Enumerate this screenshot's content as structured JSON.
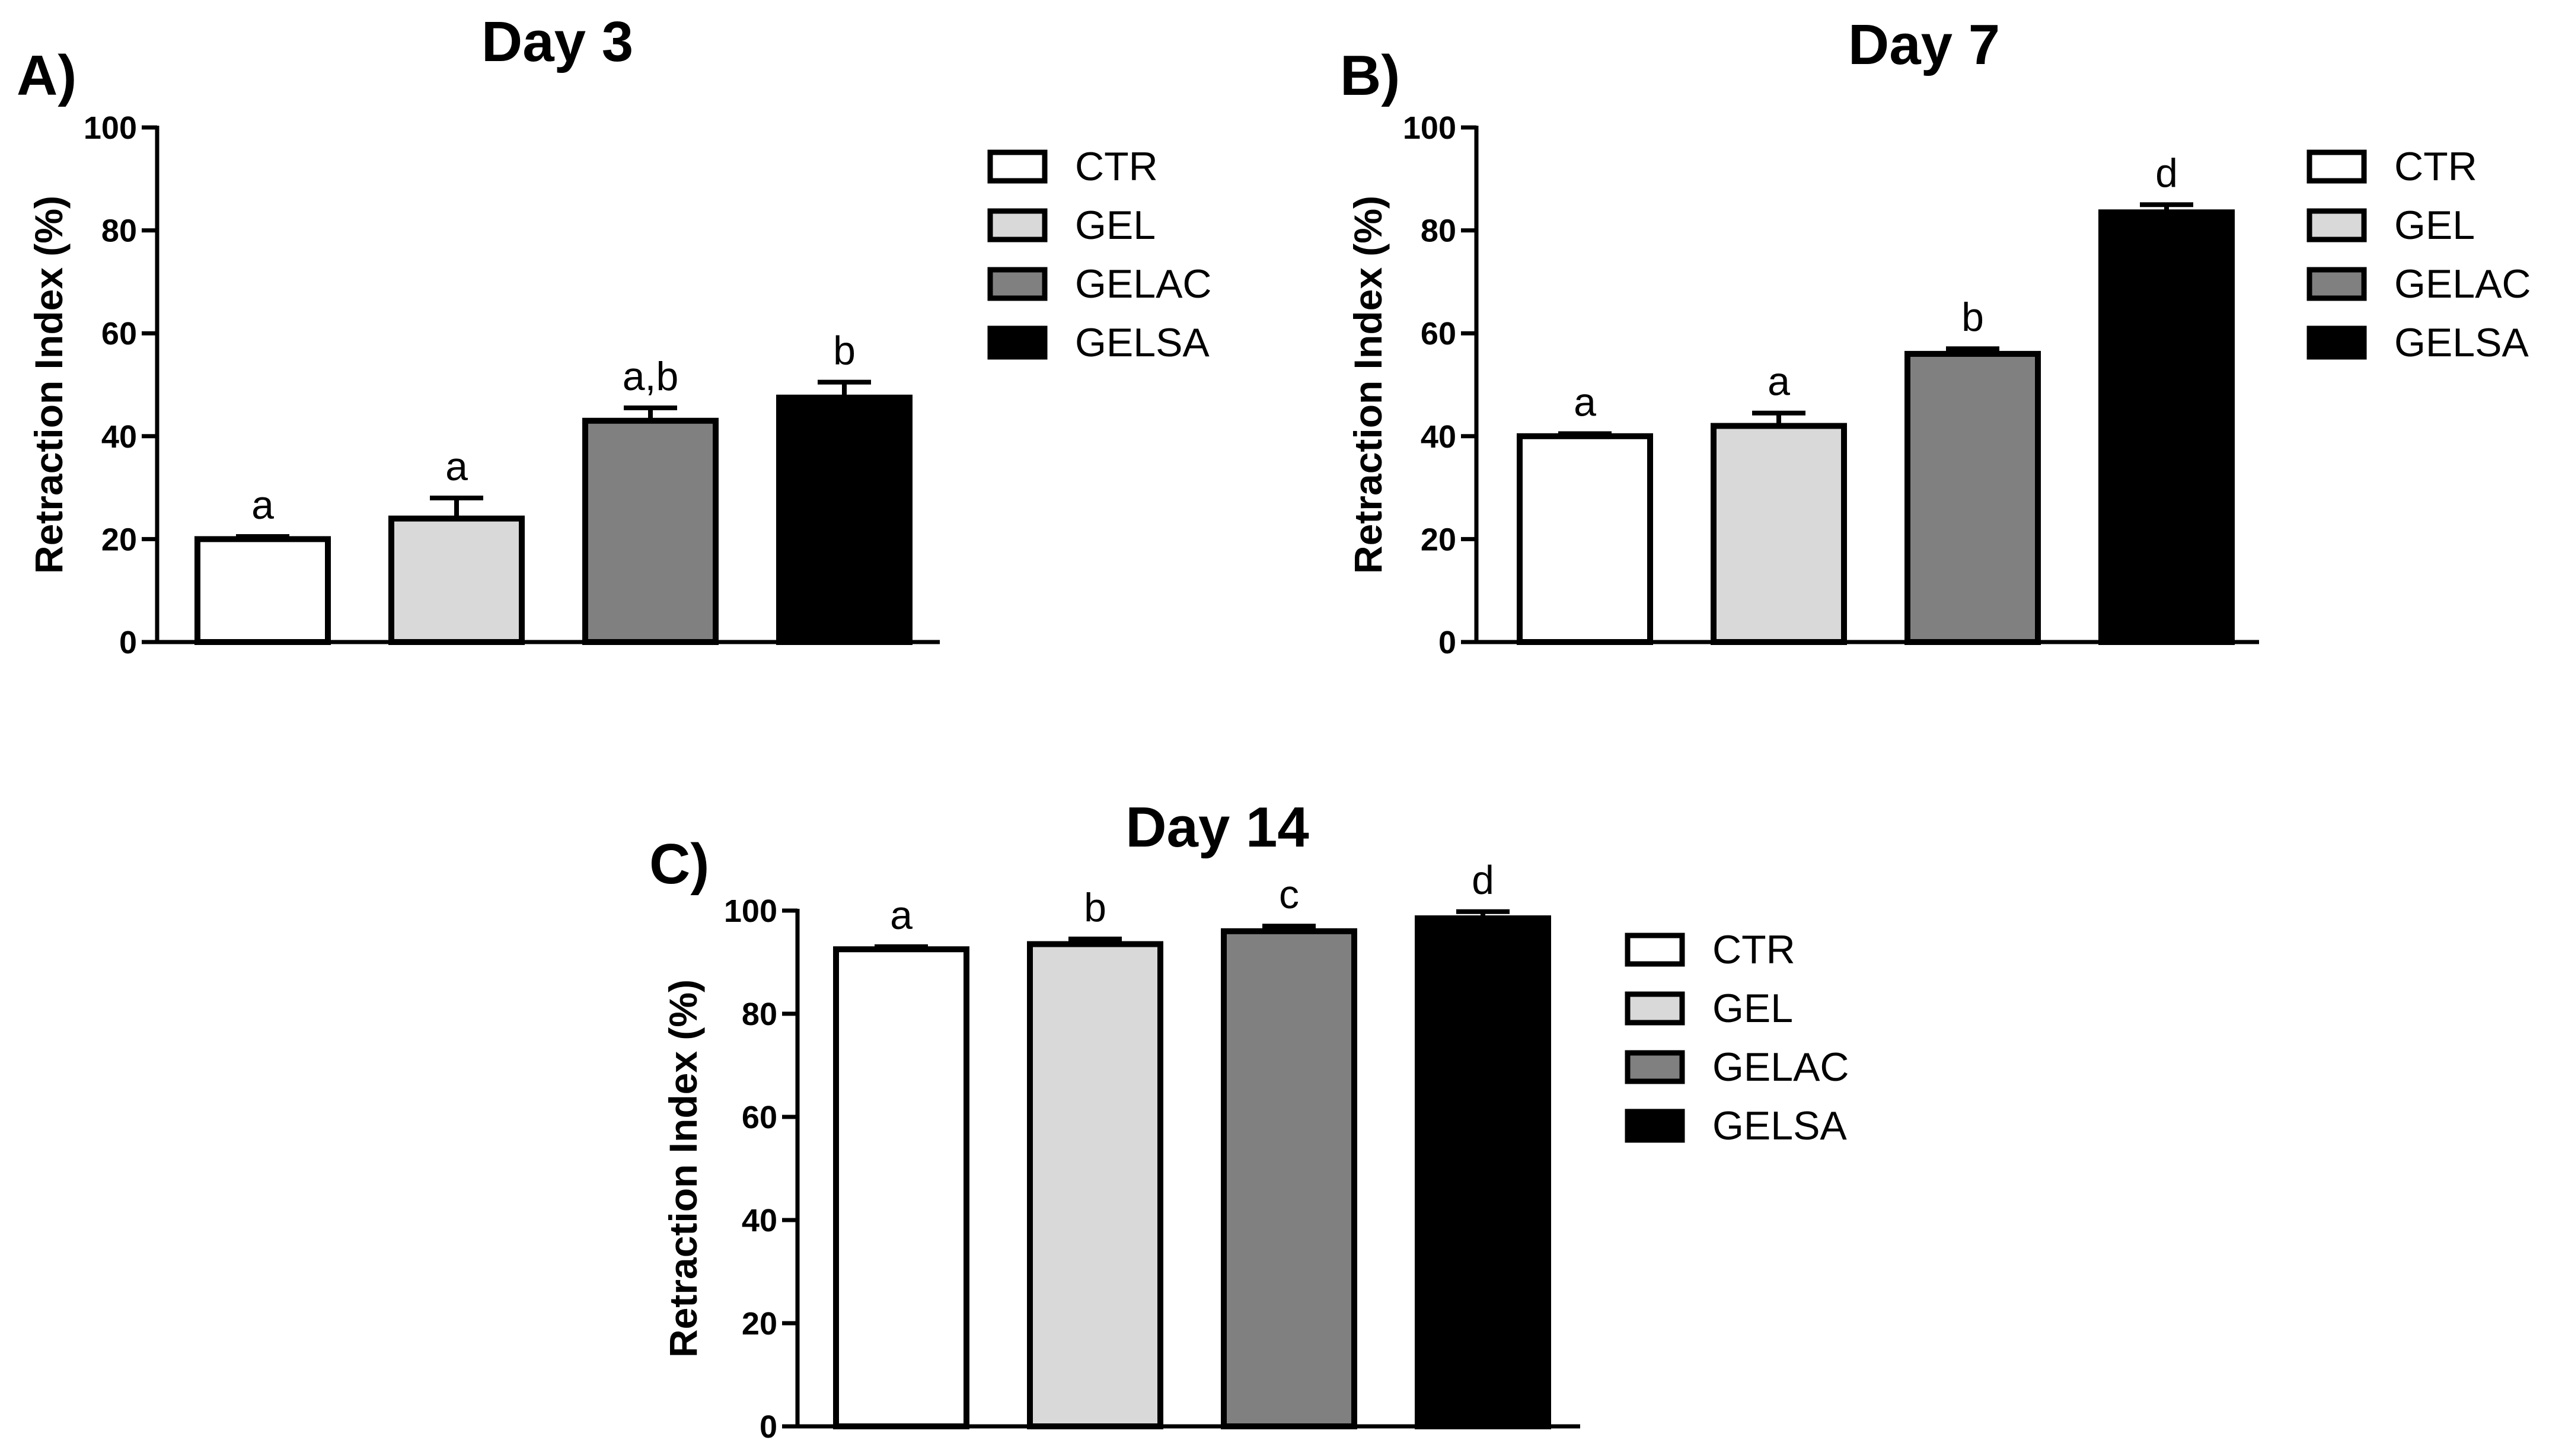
{
  "figure": {
    "categories": [
      "CTR",
      "GEL",
      "GELAC",
      "GELSA"
    ],
    "colors": {
      "CTR": "#ffffff",
      "GEL": "#d9d9d9",
      "GELAC": "#808080",
      "GELSA": "#000000",
      "stroke": "#000000"
    }
  },
  "chart_data": [
    {
      "type": "bar",
      "panel": "A)",
      "title": "Day 3",
      "xlabel": "",
      "ylabel": "Retraction Index (%)",
      "ylim": [
        0,
        100
      ],
      "yticks": [
        0,
        20,
        40,
        60,
        80,
        100
      ],
      "categories": [
        "CTR",
        "GEL",
        "GELAC",
        "GELSA"
      ],
      "values": [
        20,
        24,
        43,
        47.5
      ],
      "errors": [
        0.5,
        4,
        2.5,
        3
      ],
      "significance": [
        "a",
        "a",
        "a,b",
        "b"
      ],
      "legend": [
        "CTR",
        "GEL",
        "GELAC",
        "GELSA"
      ],
      "legend_position": "right"
    },
    {
      "type": "bar",
      "panel": "B)",
      "title": "Day 7",
      "xlabel": "",
      "ylabel": "Retraction Index (%)",
      "ylim": [
        0,
        100
      ],
      "yticks": [
        0,
        20,
        40,
        60,
        80,
        100
      ],
      "categories": [
        "CTR",
        "GEL",
        "GELAC",
        "GELSA"
      ],
      "values": [
        40,
        42,
        56,
        83.5
      ],
      "errors": [
        0.5,
        2.5,
        1,
        1.5
      ],
      "significance": [
        "a",
        "a",
        "b",
        "d"
      ],
      "legend": [
        "CTR",
        "GEL",
        "GELAC",
        "GELSA"
      ],
      "legend_position": "right"
    },
    {
      "type": "bar",
      "panel": "C)",
      "title": "Day 14",
      "xlabel": "",
      "ylabel": "Retraction Index (%)",
      "ylim": [
        0,
        100
      ],
      "yticks": [
        0,
        20,
        40,
        60,
        80,
        100
      ],
      "categories": [
        "CTR",
        "GEL",
        "GELAC",
        "GELSA"
      ],
      "values": [
        92.5,
        93.5,
        96,
        98.5
      ],
      "errors": [
        0.5,
        1,
        1,
        1.3
      ],
      "significance": [
        "a",
        "b",
        "c",
        "d"
      ],
      "legend": [
        "CTR",
        "GEL",
        "GELAC",
        "GELSA"
      ],
      "legend_position": "right"
    }
  ]
}
